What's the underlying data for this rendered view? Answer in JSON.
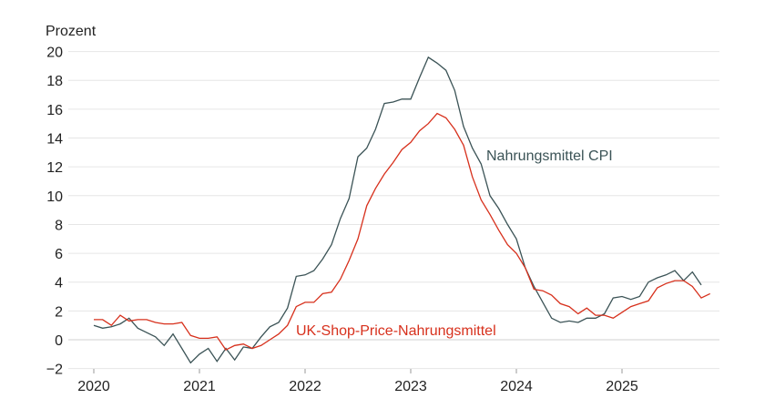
{
  "chart_data": {
    "type": "line",
    "ylabel": "Prozent",
    "ylim": [
      -2,
      20
    ],
    "yticks": [
      -2,
      0,
      2,
      4,
      6,
      8,
      10,
      12,
      14,
      16,
      18,
      20
    ],
    "ytick_labels": [
      "−2",
      "0",
      "2",
      "4",
      "6",
      "8",
      "10",
      "12",
      "14",
      "16",
      "18",
      "20"
    ],
    "xticks": [
      "2020",
      "2021",
      "2022",
      "2023",
      "2024",
      "2025"
    ],
    "x_start": "2020-01",
    "x_frequency": "monthly",
    "grid": true,
    "series": [
      {
        "name": "Nahrungsmittel CPI",
        "color": "#3b5356",
        "values": [
          1.0,
          0.8,
          0.9,
          1.1,
          1.5,
          0.8,
          0.5,
          0.2,
          -0.4,
          0.4,
          -0.6,
          -1.6,
          -1.0,
          -0.6,
          -1.5,
          -0.6,
          -1.4,
          -0.5,
          -0.6,
          0.2,
          0.9,
          1.2,
          2.2,
          4.4,
          4.5,
          4.8,
          5.6,
          6.6,
          8.4,
          9.8,
          12.7,
          13.3,
          14.6,
          16.4,
          16.5,
          16.7,
          16.7,
          18.2,
          19.6,
          19.2,
          18.7,
          17.3,
          14.8,
          13.3,
          12.2,
          10.0,
          9.1,
          8.0,
          7.0,
          5.0,
          3.7,
          2.6,
          1.5,
          1.2,
          1.3,
          1.2,
          1.5,
          1.5,
          1.8,
          2.9,
          3.0,
          2.8,
          3.0,
          4.0,
          4.3,
          4.5,
          4.8,
          4.1,
          4.7,
          3.8
        ]
      },
      {
        "name": "UK-Shop-Price-Nahrungsmittel",
        "color": "#d7301c",
        "values": [
          1.4,
          1.4,
          1.0,
          1.7,
          1.3,
          1.4,
          1.4,
          1.2,
          1.1,
          1.1,
          1.2,
          0.3,
          0.1,
          0.1,
          0.2,
          -0.7,
          -0.4,
          -0.3,
          -0.6,
          -0.4,
          0.0,
          0.4,
          1.0,
          2.3,
          2.6,
          2.6,
          3.2,
          3.3,
          4.2,
          5.5,
          7.0,
          9.3,
          10.5,
          11.5,
          12.3,
          13.2,
          13.7,
          14.5,
          15.0,
          15.7,
          15.4,
          14.6,
          13.5,
          11.3,
          9.7,
          8.7,
          7.6,
          6.6,
          6.0,
          5.0,
          3.5,
          3.4,
          3.1,
          2.5,
          2.3,
          1.8,
          2.2,
          1.7,
          1.7,
          1.5,
          1.9,
          2.3,
          2.5,
          2.7,
          3.6,
          3.9,
          4.1,
          4.1,
          3.7,
          2.9,
          3.2
        ]
      }
    ]
  }
}
